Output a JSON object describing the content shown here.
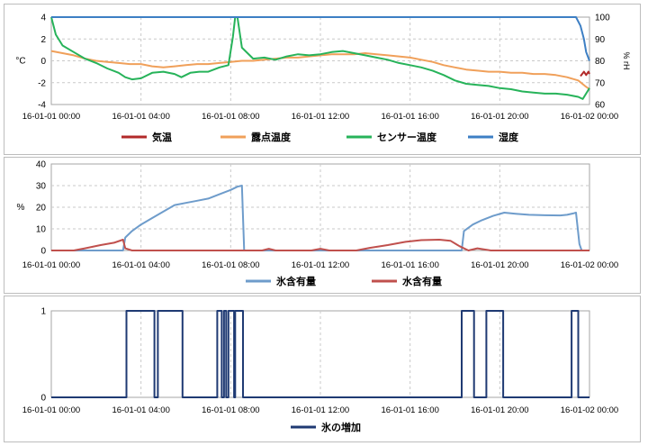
{
  "chart_data": [
    {
      "type": "line",
      "x_ticks": [
        "16-01-01 00:00",
        "16-01-01 04:00",
        "16-01-01 08:00",
        "16-01-01 12:00",
        "16-01-01 16:00",
        "16-01-01 20:00",
        "16-01-02 00:00"
      ],
      "xlim_hours": [
        0,
        24
      ],
      "ylabel": "°C",
      "ylim": [
        -4,
        4
      ],
      "y_ticks": [
        -4,
        -2,
        0,
        2,
        4
      ],
      "y2label": "% rH",
      "y2lim": [
        60,
        100
      ],
      "y2_ticks": [
        60,
        70,
        80,
        90,
        100
      ],
      "grid": true,
      "legend_position": "bottom",
      "series": [
        {
          "name": "気温",
          "color": "#b22a2a",
          "axis": "left",
          "points": [
            [
              23.6,
              -1.4
            ],
            [
              23.75,
              -1.0
            ],
            [
              23.85,
              -1.3
            ],
            [
              23.95,
              -1.0
            ],
            [
              24.0,
              -1.2
            ]
          ]
        },
        {
          "name": "露点温度",
          "color": "#f0a05a",
          "axis": "left",
          "points": [
            [
              0,
              0.9
            ],
            [
              0.5,
              0.7
            ],
            [
              1,
              0.5
            ],
            [
              1.5,
              0.2
            ],
            [
              2,
              0.0
            ],
            [
              2.5,
              -0.1
            ],
            [
              3,
              -0.2
            ],
            [
              3.5,
              -0.3
            ],
            [
              4,
              -0.3
            ],
            [
              4.5,
              -0.5
            ],
            [
              5,
              -0.6
            ],
            [
              5.5,
              -0.5
            ],
            [
              6,
              -0.4
            ],
            [
              6.5,
              -0.3
            ],
            [
              7,
              -0.3
            ],
            [
              7.5,
              -0.2
            ],
            [
              8,
              -0.1
            ],
            [
              8.5,
              0.0
            ],
            [
              9,
              0.0
            ],
            [
              9.5,
              0.1
            ],
            [
              10,
              0.2
            ],
            [
              10.5,
              0.3
            ],
            [
              11,
              0.3
            ],
            [
              11.5,
              0.4
            ],
            [
              12,
              0.5
            ],
            [
              12.5,
              0.6
            ],
            [
              13,
              0.6
            ],
            [
              13.5,
              0.6
            ],
            [
              14,
              0.7
            ],
            [
              14.5,
              0.6
            ],
            [
              15,
              0.5
            ],
            [
              15.5,
              0.4
            ],
            [
              16,
              0.3
            ],
            [
              16.5,
              0.1
            ],
            [
              17,
              -0.1
            ],
            [
              17.5,
              -0.4
            ],
            [
              18,
              -0.6
            ],
            [
              18.5,
              -0.8
            ],
            [
              19,
              -0.9
            ],
            [
              19.5,
              -1.0
            ],
            [
              20,
              -1.0
            ],
            [
              20.5,
              -1.1
            ],
            [
              21,
              -1.1
            ],
            [
              21.5,
              -1.2
            ],
            [
              22,
              -1.2
            ],
            [
              22.5,
              -1.3
            ],
            [
              23,
              -1.5
            ],
            [
              23.5,
              -1.8
            ],
            [
              23.8,
              -2.3
            ],
            [
              24.0,
              -2.6
            ]
          ]
        },
        {
          "name": "センサー温度",
          "color": "#27b35a",
          "axis": "left",
          "points": [
            [
              0,
              4.0
            ],
            [
              0.2,
              2.4
            ],
            [
              0.5,
              1.4
            ],
            [
              1,
              0.8
            ],
            [
              1.5,
              0.2
            ],
            [
              2,
              -0.2
            ],
            [
              2.5,
              -0.7
            ],
            [
              3,
              -1.1
            ],
            [
              3.3,
              -1.5
            ],
            [
              3.6,
              -1.7
            ],
            [
              4,
              -1.6
            ],
            [
              4.5,
              -1.1
            ],
            [
              5,
              -1.0
            ],
            [
              5.5,
              -1.2
            ],
            [
              5.8,
              -1.5
            ],
            [
              6.2,
              -1.1
            ],
            [
              6.6,
              -1.0
            ],
            [
              7,
              -1.0
            ],
            [
              7.5,
              -0.6
            ],
            [
              7.9,
              -0.4
            ],
            [
              8.1,
              2.2
            ],
            [
              8.2,
              4.0
            ],
            [
              8.3,
              4.0
            ],
            [
              8.5,
              1.2
            ],
            [
              9,
              0.2
            ],
            [
              9.5,
              0.3
            ],
            [
              10,
              0.1
            ],
            [
              10.5,
              0.4
            ],
            [
              11,
              0.6
            ],
            [
              11.5,
              0.5
            ],
            [
              12,
              0.6
            ],
            [
              12.5,
              0.8
            ],
            [
              13,
              0.9
            ],
            [
              13.5,
              0.7
            ],
            [
              14,
              0.5
            ],
            [
              14.5,
              0.3
            ],
            [
              15,
              0.1
            ],
            [
              15.5,
              -0.2
            ],
            [
              16,
              -0.4
            ],
            [
              16.5,
              -0.6
            ],
            [
              17,
              -0.9
            ],
            [
              17.5,
              -1.3
            ],
            [
              18,
              -1.8
            ],
            [
              18.5,
              -2.1
            ],
            [
              19,
              -2.2
            ],
            [
              19.5,
              -2.3
            ],
            [
              20,
              -2.5
            ],
            [
              20.5,
              -2.6
            ],
            [
              21,
              -2.8
            ],
            [
              21.5,
              -2.9
            ],
            [
              22,
              -3.0
            ],
            [
              22.5,
              -3.0
            ],
            [
              23,
              -3.1
            ],
            [
              23.5,
              -3.3
            ],
            [
              23.7,
              -3.5
            ],
            [
              24.0,
              -2.5
            ]
          ]
        },
        {
          "name": "湿度",
          "color": "#3d7fc4",
          "axis": "right",
          "points": [
            [
              0,
              100
            ],
            [
              23.4,
              100
            ],
            [
              23.6,
              96
            ],
            [
              23.75,
              90
            ],
            [
              23.85,
              84
            ],
            [
              24.0,
              80
            ]
          ]
        }
      ]
    },
    {
      "type": "line",
      "x_ticks": [
        "16-01-01 00:00",
        "16-01-01 04:00",
        "16-01-01 08:00",
        "16-01-01 12:00",
        "16-01-01 16:00",
        "16-01-01 20:00",
        "16-01-02 00:00"
      ],
      "xlim_hours": [
        0,
        24
      ],
      "ylabel": "%",
      "ylim": [
        0,
        40
      ],
      "y_ticks": [
        0,
        10,
        20,
        30,
        40
      ],
      "grid": true,
      "legend_position": "bottom",
      "series": [
        {
          "name": "氷含有量",
          "color": "#6e9ccb",
          "points": [
            [
              0,
              0
            ],
            [
              3.2,
              0
            ],
            [
              3.3,
              6
            ],
            [
              3.6,
              9
            ],
            [
              4,
              12
            ],
            [
              4.5,
              15
            ],
            [
              5,
              18
            ],
            [
              5.5,
              21
            ],
            [
              6,
              22
            ],
            [
              6.5,
              23
            ],
            [
              7,
              24
            ],
            [
              7.5,
              26
            ],
            [
              8,
              28
            ],
            [
              8.3,
              29.5
            ],
            [
              8.5,
              30
            ],
            [
              8.6,
              0
            ],
            [
              18.3,
              0
            ],
            [
              18.4,
              9
            ],
            [
              18.8,
              12
            ],
            [
              19.2,
              14
            ],
            [
              19.7,
              16
            ],
            [
              20.2,
              17.5
            ],
            [
              20.7,
              17
            ],
            [
              21.3,
              16.5
            ],
            [
              22,
              16.3
            ],
            [
              22.7,
              16.2
            ],
            [
              23,
              16.5
            ],
            [
              23.3,
              17.2
            ],
            [
              23.4,
              17.5
            ],
            [
              23.55,
              3
            ],
            [
              23.65,
              0
            ],
            [
              24,
              0
            ]
          ]
        },
        {
          "name": "水含有量",
          "color": "#c0504d",
          "points": [
            [
              0,
              0
            ],
            [
              1.0,
              0
            ],
            [
              1.5,
              1
            ],
            [
              2.2,
              2.5
            ],
            [
              2.8,
              3.6
            ],
            [
              3.2,
              5
            ],
            [
              3.3,
              1
            ],
            [
              3.6,
              0
            ],
            [
              9.4,
              0
            ],
            [
              9.7,
              0.8
            ],
            [
              10,
              0
            ],
            [
              11.6,
              0
            ],
            [
              12,
              0.8
            ],
            [
              12.4,
              0
            ],
            [
              13.6,
              0
            ],
            [
              14.2,
              1.2
            ],
            [
              15,
              2.5
            ],
            [
              15.8,
              4
            ],
            [
              16.5,
              4.8
            ],
            [
              17.3,
              5
            ],
            [
              17.8,
              4.5
            ],
            [
              18.2,
              2
            ],
            [
              18.6,
              0
            ],
            [
              19.0,
              1
            ],
            [
              19.6,
              0
            ],
            [
              24,
              0
            ]
          ]
        }
      ]
    },
    {
      "type": "line",
      "x_ticks": [
        "16-01-01 00:00",
        "16-01-01 04:00",
        "16-01-01 08:00",
        "16-01-01 12:00",
        "16-01-01 16:00",
        "16-01-01 20:00",
        "16-01-02 00:00"
      ],
      "xlim_hours": [
        0,
        24
      ],
      "ylim": [
        0,
        1
      ],
      "y_ticks": [
        0,
        1
      ],
      "grid": true,
      "legend_position": "bottom",
      "series": [
        {
          "name": "氷の増加",
          "color": "#1f3a73",
          "step_on": [
            [
              3.35,
              4.6
            ],
            [
              4.75,
              5.85
            ],
            [
              7.4,
              7.6
            ],
            [
              7.7,
              7.8
            ],
            [
              7.9,
              8.15
            ],
            [
              8.2,
              8.55
            ],
            [
              18.3,
              18.85
            ],
            [
              19.4,
              20.15
            ],
            [
              23.2,
              23.5
            ]
          ]
        }
      ]
    }
  ]
}
